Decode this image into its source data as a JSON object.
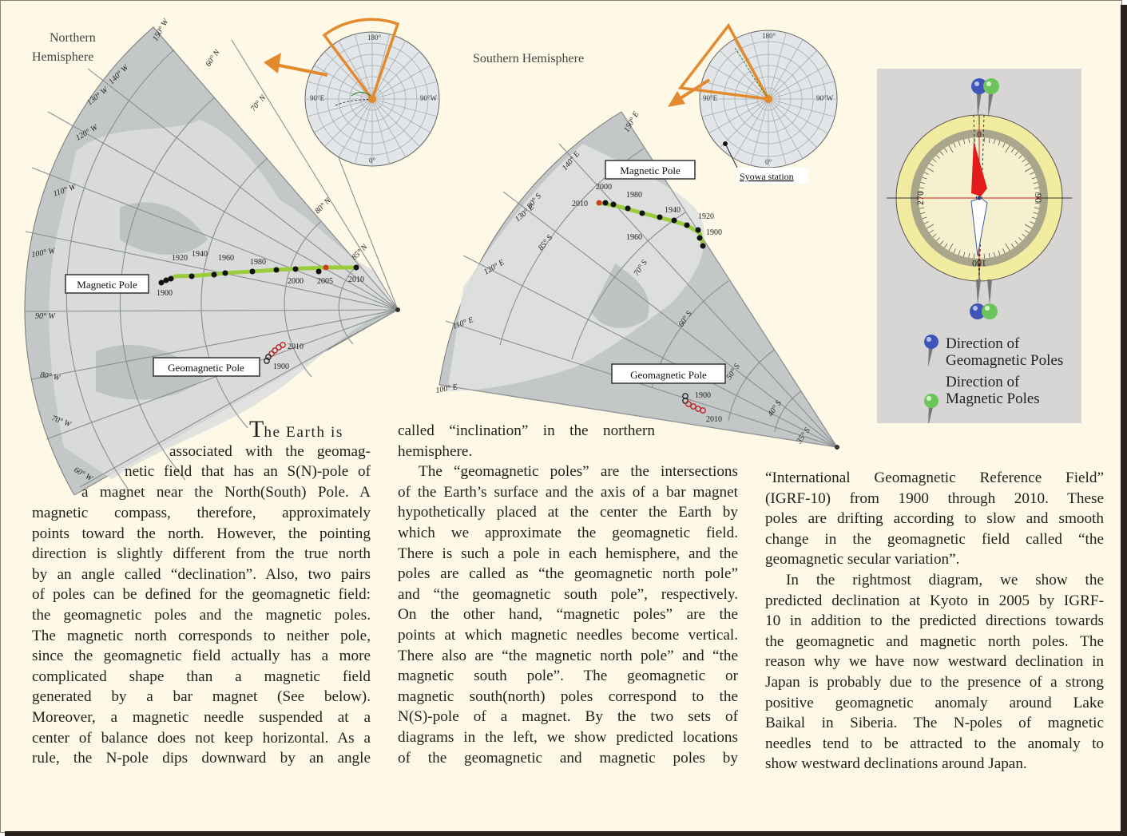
{
  "northern_map": {
    "title_line1": "Northern",
    "title_line2": "Hemisphere",
    "lon_labels": [
      "150° W",
      "140° W",
      "130° W",
      "120° W",
      "110° W",
      "100° W",
      "90° W",
      "80° W",
      "70° W",
      "60° W"
    ],
    "lat_labels": [
      "60° N",
      "70° N",
      "80° N",
      "85° N"
    ],
    "magnetic_pole_label": "Magnetic Pole",
    "geomagnetic_pole_label": "Geomagnetic Pole",
    "year_labels": [
      "1920",
      "1940",
      "1960",
      "1980",
      "2000",
      "2005",
      "2010",
      "1900"
    ],
    "geo_year_labels": [
      "2010",
      "1900"
    ]
  },
  "southern_map": {
    "title": "Southern Hemisphere",
    "lon_labels": [
      "150° E",
      "140° E",
      "130° E",
      "120° E",
      "110° E",
      "100° E"
    ],
    "lat_labels": [
      "85° S",
      "80° S",
      "70° S",
      "60° S",
      "50° S",
      "40° S",
      "35° S"
    ],
    "magnetic_pole_label": "Magnetic Pole",
    "geomagnetic_pole_label": "Geomagnetic Pole",
    "year_labels": [
      "2000",
      "1980",
      "2010",
      "1940",
      "1920",
      "1900",
      "1960"
    ],
    "geo_year_labels": [
      "1900",
      "2010"
    ],
    "station_label": "Syowa station"
  },
  "inset_north": {
    "labels": [
      "180°",
      "90°E",
      "90°W",
      "0°"
    ]
  },
  "inset_south": {
    "labels": [
      "180°",
      "90°E",
      "90°W",
      "0°"
    ]
  },
  "compass": {
    "ticks": [
      "0",
      "90",
      "180",
      "270"
    ],
    "legend_geo_line1": "Direction of",
    "legend_geo_line2": "Geomagnetic Poles",
    "legend_mag_line1": "Direction of",
    "legend_mag_line2": "Magnetic Poles",
    "colors": {
      "geomagnetic": "#3f56b8",
      "magnetic": "#6cc55a",
      "ring": "#f2eca0",
      "needle": "#e31b1b"
    }
  },
  "text_left": {
    "dropcap": "T",
    "lines": [
      "he Earth is",
      "associated with the geomag-",
      "netic field that has an S(N)-pole of",
      "a magnet near the North(South) Pole. A",
      "magnetic compass, therefore, approximately",
      "points toward the north. However, the pointing",
      "direction is slightly different from the true north",
      "by an angle called “declination”. Also, two pairs",
      "of poles can be defined for the geomagnetic field:",
      "the geomagnetic poles and the magnetic poles.",
      "The magnetic north corresponds to neither pole,",
      "since the geomagnetic field actually has a more",
      "complicated shape than a magnetic field",
      "generated by a bar magnet (See below).",
      "Moreover, a magnetic needle suspended at a",
      "center of balance does not keep horizontal. As a",
      "rule, the N-pole dips downward by an angle"
    ]
  },
  "text_middle": {
    "lines": [
      "called “inclination” in the northern",
      "hemisphere.",
      "The “geomagnetic poles” are the intersections",
      "of the Earth’s surface and the axis of a bar magnet",
      "hypothetically placed at the center the Earth by",
      "which we approximate the geomagnetic field.",
      "There is such a pole in each hemisphere, and the",
      "poles are called as “the geomagnetic north pole”",
      "and “the geomagnetic south pole”, respectively.",
      "On the other hand, “magnetic poles” are the",
      "points at which magnetic needles become vertical.",
      "There also are “the magnetic north pole” and “the",
      "magnetic south pole”. The geomagnetic or",
      "magnetic south(north) poles correspond to the",
      "N(S)-pole of a magnet. By the two sets of",
      "diagrams in the left, we show predicted locations",
      "of the geomagnetic and magnetic poles by"
    ]
  },
  "text_right": {
    "lines": [
      "“International Geomagnetic Reference Field”",
      "(IGRF-10) from 1900 through 2010. These",
      "poles are drifting according to slow and smooth",
      "change in the geomagnetic field called “the",
      "geomagnetic secular variation”.",
      "In the rightmost diagram, we show the",
      "predicted declination at Kyoto in 2005 by IGRF-",
      "10 in addition to the predicted directions towards",
      "the geomagnetic and magnetic north poles. The",
      "reason why we have now westward declination in",
      "Japan is probably due to the presence of a strong",
      "positive geomagnetic anomaly around Lake",
      "Baikal in Siberia. The N-poles of magnetic",
      "needles tend to be attracted to the anomaly to",
      "show westward declinations around Japan."
    ]
  }
}
